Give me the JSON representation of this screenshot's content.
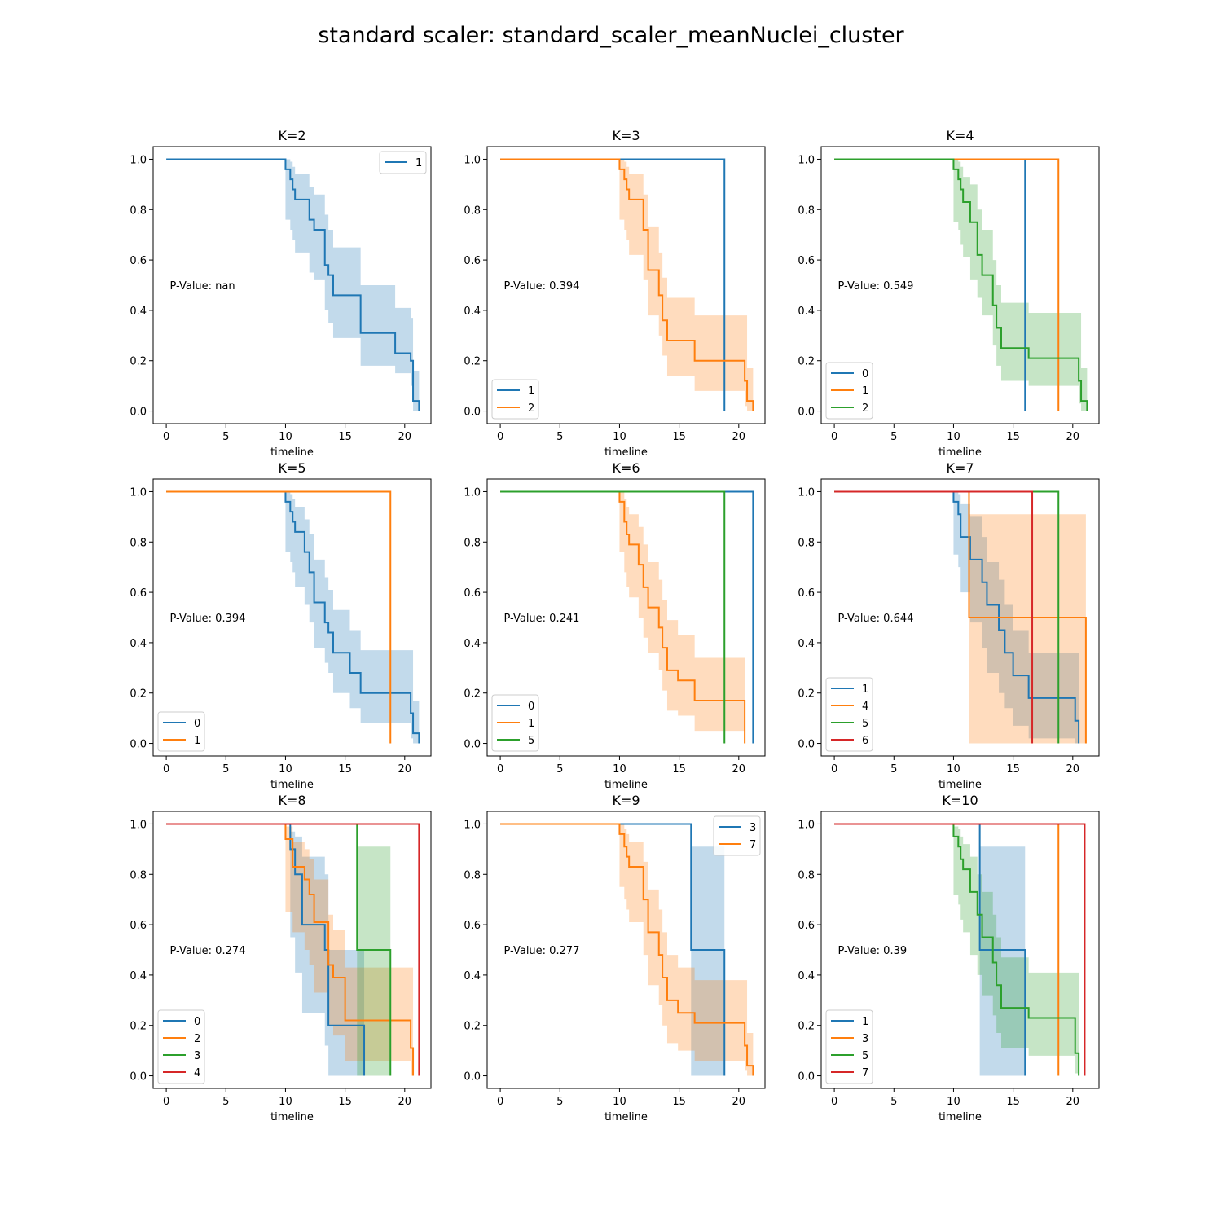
{
  "suptitle": "standard scaler: standard_scaler_meanNuclei_cluster",
  "colors": {
    "C0": "#1f77b4",
    "C1": "#ff7f0e",
    "C2": "#2ca02c",
    "C3": "#d62728"
  },
  "chart_data": [
    {
      "type": "line",
      "title": "K=2",
      "xlabel": "timeline",
      "xlim": [
        -1.1,
        22.2
      ],
      "ylim": [
        -0.05,
        1.05
      ],
      "xticks": [
        0,
        5,
        10,
        15,
        20
      ],
      "yticks": [
        "0.0",
        "0.2",
        "0.4",
        "0.6",
        "0.8",
        "1.0"
      ],
      "annotation": "P-Value: nan",
      "legend": "top-right",
      "series": [
        {
          "name": "1",
          "color": "#1f77b4",
          "x": [
            0,
            10,
            10.4,
            10.6,
            10.8,
            12.0,
            12.4,
            13.3,
            13.6,
            14.0,
            16.3,
            19.2,
            20.5,
            20.7,
            21.2
          ],
          "y": [
            1.0,
            0.96,
            0.92,
            0.88,
            0.84,
            0.76,
            0.72,
            0.58,
            0.54,
            0.46,
            0.31,
            0.23,
            0.2,
            0.04,
            0.0
          ],
          "ci_lo": [
            1.0,
            0.76,
            0.72,
            0.68,
            0.63,
            0.55,
            0.52,
            0.4,
            0.35,
            0.29,
            0.18,
            0.15,
            0.1,
            0.0,
            0.0
          ],
          "ci_hi": [
            1.0,
            1.0,
            0.99,
            0.97,
            0.94,
            0.89,
            0.86,
            0.78,
            0.72,
            0.65,
            0.5,
            0.41,
            0.37,
            0.16,
            0.16
          ]
        }
      ]
    },
    {
      "type": "line",
      "title": "K=3",
      "xlabel": "timeline",
      "xlim": [
        -1.1,
        22.2
      ],
      "ylim": [
        -0.05,
        1.05
      ],
      "xticks": [
        0,
        5,
        10,
        15,
        20
      ],
      "yticks": [
        "0.0",
        "0.2",
        "0.4",
        "0.6",
        "0.8",
        "1.0"
      ],
      "annotation": "P-Value: 0.394",
      "legend": "lower-left",
      "series": [
        {
          "name": "1",
          "color": "#1f77b4",
          "x": [
            0,
            18.8
          ],
          "y": [
            1.0,
            0.0
          ]
        },
        {
          "name": "2",
          "color": "#ff7f0e",
          "x": [
            0,
            10,
            10.4,
            10.6,
            10.8,
            12.0,
            12.4,
            13.3,
            13.6,
            14.0,
            16.3,
            20.5,
            20.7,
            21.2
          ],
          "y": [
            1.0,
            0.96,
            0.92,
            0.88,
            0.84,
            0.72,
            0.56,
            0.46,
            0.36,
            0.28,
            0.2,
            0.12,
            0.04,
            0.0
          ],
          "ci_lo": [
            1.0,
            0.76,
            0.72,
            0.68,
            0.62,
            0.52,
            0.38,
            0.3,
            0.22,
            0.14,
            0.08,
            0.02,
            0.0,
            0.0
          ],
          "ci_hi": [
            1.0,
            1.0,
            0.99,
            0.97,
            0.94,
            0.86,
            0.73,
            0.63,
            0.53,
            0.45,
            0.38,
            0.38,
            0.17,
            0.17
          ]
        }
      ]
    },
    {
      "type": "line",
      "title": "K=4",
      "xlabel": "timeline",
      "xlim": [
        -1.1,
        22.2
      ],
      "ylim": [
        -0.05,
        1.05
      ],
      "xticks": [
        0,
        5,
        10,
        15,
        20
      ],
      "yticks": [
        "0.0",
        "0.2",
        "0.4",
        "0.6",
        "0.8",
        "1.0"
      ],
      "annotation": "P-Value: 0.549",
      "legend": "lower-left",
      "series": [
        {
          "name": "0",
          "color": "#1f77b4",
          "x": [
            0,
            16.0
          ],
          "y": [
            1.0,
            0.0
          ]
        },
        {
          "name": "1",
          "color": "#ff7f0e",
          "x": [
            0,
            18.8
          ],
          "y": [
            1.0,
            0.0
          ]
        },
        {
          "name": "2",
          "color": "#2ca02c",
          "x": [
            0,
            10,
            10.4,
            10.6,
            10.8,
            11.4,
            12.0,
            12.4,
            13.3,
            13.6,
            14.0,
            16.3,
            20.5,
            20.7,
            21.2
          ],
          "y": [
            1.0,
            0.96,
            0.92,
            0.88,
            0.83,
            0.75,
            0.62,
            0.54,
            0.42,
            0.33,
            0.25,
            0.21,
            0.12,
            0.04,
            0.0
          ],
          "ci_lo": [
            1.0,
            0.75,
            0.72,
            0.66,
            0.61,
            0.52,
            0.45,
            0.38,
            0.26,
            0.18,
            0.12,
            0.1,
            0.03,
            0.0,
            0.0
          ],
          "ci_hi": [
            1.0,
            1.0,
            0.99,
            0.97,
            0.93,
            0.9,
            0.8,
            0.72,
            0.6,
            0.5,
            0.43,
            0.39,
            0.39,
            0.17,
            0.17
          ]
        }
      ]
    },
    {
      "type": "line",
      "title": "K=5",
      "xlabel": "timeline",
      "xlim": [
        -1.1,
        22.2
      ],
      "ylim": [
        -0.05,
        1.05
      ],
      "xticks": [
        0,
        5,
        10,
        15,
        20
      ],
      "yticks": [
        "0.0",
        "0.2",
        "0.4",
        "0.6",
        "0.8",
        "1.0"
      ],
      "annotation": "P-Value: 0.394",
      "legend": "lower-left",
      "series": [
        {
          "name": "0",
          "color": "#1f77b4",
          "x": [
            0,
            10,
            10.4,
            10.6,
            10.8,
            11.6,
            12.0,
            12.4,
            13.3,
            13.6,
            14.0,
            15.4,
            16.3,
            20.5,
            20.7,
            21.2
          ],
          "y": [
            1.0,
            0.96,
            0.92,
            0.88,
            0.84,
            0.76,
            0.68,
            0.56,
            0.48,
            0.44,
            0.36,
            0.28,
            0.2,
            0.12,
            0.04,
            0.0
          ],
          "ci_lo": [
            1.0,
            0.76,
            0.72,
            0.68,
            0.62,
            0.55,
            0.48,
            0.38,
            0.32,
            0.28,
            0.2,
            0.14,
            0.08,
            0.02,
            0.0,
            0.0
          ],
          "ci_hi": [
            1.0,
            1.0,
            0.99,
            0.97,
            0.94,
            0.89,
            0.83,
            0.73,
            0.66,
            0.61,
            0.53,
            0.45,
            0.37,
            0.37,
            0.17,
            0.17
          ]
        },
        {
          "name": "1",
          "color": "#ff7f0e",
          "x": [
            0,
            18.8
          ],
          "y": [
            1.0,
            0.0
          ]
        }
      ]
    },
    {
      "type": "line",
      "title": "K=6",
      "xlabel": "timeline",
      "xlim": [
        -1.1,
        22.2
      ],
      "ylim": [
        -0.05,
        1.05
      ],
      "xticks": [
        0,
        5,
        10,
        15,
        20
      ],
      "yticks": [
        "0.0",
        "0.2",
        "0.4",
        "0.6",
        "0.8",
        "1.0"
      ],
      "annotation": "P-Value: 0.241",
      "legend": "lower-left",
      "series": [
        {
          "name": "0",
          "color": "#1f77b4",
          "x": [
            0,
            21.2
          ],
          "y": [
            1.0,
            0.0
          ]
        },
        {
          "name": "1",
          "color": "#ff7f0e",
          "x": [
            0,
            10,
            10.4,
            10.6,
            10.8,
            11.6,
            12.0,
            12.4,
            13.3,
            13.6,
            14.0,
            14.9,
            16.3,
            20.5
          ],
          "y": [
            1.0,
            0.96,
            0.88,
            0.83,
            0.79,
            0.71,
            0.62,
            0.54,
            0.46,
            0.38,
            0.29,
            0.25,
            0.17,
            0.0
          ],
          "ci_lo": [
            1.0,
            0.76,
            0.68,
            0.62,
            0.58,
            0.5,
            0.42,
            0.36,
            0.29,
            0.21,
            0.13,
            0.11,
            0.05,
            0.0
          ],
          "ci_hi": [
            1.0,
            1.0,
            0.97,
            0.94,
            0.91,
            0.86,
            0.79,
            0.72,
            0.65,
            0.57,
            0.49,
            0.43,
            0.34,
            0.34
          ]
        },
        {
          "name": "5",
          "color": "#2ca02c",
          "x": [
            0,
            18.8
          ],
          "y": [
            1.0,
            0.0
          ]
        }
      ]
    },
    {
      "type": "line",
      "title": "K=7",
      "xlabel": "timeline",
      "xlim": [
        -1.1,
        22.2
      ],
      "ylim": [
        -0.05,
        1.05
      ],
      "xticks": [
        0,
        5,
        10,
        15,
        20
      ],
      "yticks": [
        "0.0",
        "0.2",
        "0.4",
        "0.6",
        "0.8",
        "1.0"
      ],
      "annotation": "P-Value: 0.644",
      "legend": "lower-left",
      "series": [
        {
          "name": "1",
          "color": "#1f77b4",
          "x": [
            0,
            10,
            10.4,
            10.6,
            11.4,
            12.4,
            12.8,
            13.8,
            14.3,
            15.0,
            16.3,
            20.2,
            20.5
          ],
          "y": [
            1.0,
            0.96,
            0.91,
            0.82,
            0.73,
            0.64,
            0.55,
            0.45,
            0.36,
            0.27,
            0.18,
            0.09,
            0.0
          ],
          "ci_lo": [
            1.0,
            0.75,
            0.7,
            0.6,
            0.48,
            0.38,
            0.28,
            0.2,
            0.14,
            0.07,
            0.02,
            0.0,
            0.0
          ],
          "ci_hi": [
            1.0,
            1.0,
            0.99,
            0.95,
            0.9,
            0.82,
            0.72,
            0.65,
            0.55,
            0.45,
            0.36,
            0.36,
            0.36
          ]
        },
        {
          "name": "4",
          "color": "#ff7f0e",
          "x": [
            0,
            11.3,
            21.1
          ],
          "y": [
            1.0,
            0.5,
            0.0
          ],
          "ci_lo": [
            1.0,
            0.0,
            0.0
          ],
          "ci_hi": [
            1.0,
            0.91,
            0.91
          ]
        },
        {
          "name": "5",
          "color": "#2ca02c",
          "x": [
            0,
            18.8
          ],
          "y": [
            1.0,
            0.0
          ]
        },
        {
          "name": "6",
          "color": "#d62728",
          "x": [
            0,
            16.6
          ],
          "y": [
            1.0,
            0.0
          ]
        }
      ]
    },
    {
      "type": "line",
      "title": "K=8",
      "xlabel": "timeline",
      "xlim": [
        -1.1,
        22.2
      ],
      "ylim": [
        -0.05,
        1.05
      ],
      "xticks": [
        0,
        5,
        10,
        15,
        20
      ],
      "yticks": [
        "0.0",
        "0.2",
        "0.4",
        "0.6",
        "0.8",
        "1.0"
      ],
      "annotation": "P-Value: 0.274",
      "legend": "lower-left",
      "series": [
        {
          "name": "0",
          "color": "#1f77b4",
          "x": [
            0,
            10.4,
            10.8,
            11.4,
            13.3,
            13.6,
            16.6
          ],
          "y": [
            1.0,
            0.9,
            0.8,
            0.6,
            0.5,
            0.2,
            0.0
          ],
          "ci_lo": [
            1.0,
            0.55,
            0.41,
            0.25,
            0.12,
            0.0,
            0.0
          ],
          "ci_hi": [
            1.0,
            0.97,
            0.95,
            0.87,
            0.8,
            0.5,
            0.5
          ]
        },
        {
          "name": "2",
          "color": "#ff7f0e",
          "x": [
            0,
            10,
            10.6,
            11.6,
            12.0,
            12.4,
            13.6,
            14.0,
            15.0,
            20.5,
            20.7
          ],
          "y": [
            1.0,
            0.94,
            0.83,
            0.78,
            0.72,
            0.61,
            0.44,
            0.39,
            0.22,
            0.11,
            0.0
          ],
          "ci_lo": [
            1.0,
            0.65,
            0.57,
            0.5,
            0.44,
            0.33,
            0.2,
            0.16,
            0.06,
            0.0,
            0.0
          ],
          "ci_hi": [
            1.0,
            0.99,
            0.93,
            0.9,
            0.86,
            0.78,
            0.64,
            0.58,
            0.43,
            0.43,
            0.43
          ]
        },
        {
          "name": "3",
          "color": "#2ca02c",
          "x": [
            0,
            16.0,
            18.8
          ],
          "y": [
            1.0,
            0.5,
            0.0
          ],
          "ci_lo": [
            1.0,
            0.0,
            0.0
          ],
          "ci_hi": [
            1.0,
            0.91,
            0.91
          ]
        },
        {
          "name": "4",
          "color": "#d62728",
          "x": [
            0,
            21.2
          ],
          "y": [
            1.0,
            0.0
          ]
        }
      ]
    },
    {
      "type": "line",
      "title": "K=9",
      "xlabel": "timeline",
      "xlim": [
        -1.1,
        22.2
      ],
      "ylim": [
        -0.05,
        1.05
      ],
      "xticks": [
        0,
        5,
        10,
        15,
        20
      ],
      "yticks": [
        "0.0",
        "0.2",
        "0.4",
        "0.6",
        "0.8",
        "1.0"
      ],
      "annotation": "P-Value: 0.277",
      "legend": "top-right",
      "series": [
        {
          "name": "3",
          "color": "#1f77b4",
          "x": [
            0,
            16.0,
            18.8
          ],
          "y": [
            1.0,
            0.5,
            0.0
          ],
          "ci_lo": [
            1.0,
            0.0,
            0.0
          ],
          "ci_hi": [
            1.0,
            0.91,
            0.91
          ]
        },
        {
          "name": "7",
          "color": "#ff7f0e",
          "x": [
            0,
            10,
            10.4,
            10.6,
            10.8,
            12.0,
            12.4,
            13.3,
            13.6,
            14.0,
            14.9,
            16.3,
            20.5,
            20.7,
            21.2
          ],
          "y": [
            1.0,
            0.96,
            0.91,
            0.87,
            0.83,
            0.7,
            0.57,
            0.48,
            0.39,
            0.3,
            0.25,
            0.21,
            0.12,
            0.04,
            0.0
          ],
          "ci_lo": [
            1.0,
            0.75,
            0.7,
            0.66,
            0.61,
            0.48,
            0.36,
            0.28,
            0.2,
            0.13,
            0.1,
            0.06,
            0.02,
            0.0,
            0.0
          ],
          "ci_hi": [
            1.0,
            1.0,
            0.98,
            0.96,
            0.93,
            0.85,
            0.74,
            0.66,
            0.57,
            0.48,
            0.43,
            0.38,
            0.38,
            0.17,
            0.17
          ]
        }
      ]
    },
    {
      "type": "line",
      "title": "K=10",
      "xlabel": "timeline",
      "xlim": [
        -1.1,
        22.2
      ],
      "ylim": [
        -0.05,
        1.05
      ],
      "xticks": [
        0,
        5,
        10,
        15,
        20
      ],
      "yticks": [
        "0.0",
        "0.2",
        "0.4",
        "0.6",
        "0.8",
        "1.0"
      ],
      "annotation": "P-Value: 0.39",
      "legend": "lower-left",
      "series": [
        {
          "name": "1",
          "color": "#1f77b4",
          "x": [
            0,
            12.2,
            16.0
          ],
          "y": [
            1.0,
            0.5,
            0.0
          ],
          "ci_lo": [
            1.0,
            0.0,
            0.0
          ],
          "ci_hi": [
            1.0,
            0.91,
            0.91
          ]
        },
        {
          "name": "3",
          "color": "#ff7f0e",
          "x": [
            0,
            18.8
          ],
          "y": [
            1.0,
            0.0
          ]
        },
        {
          "name": "5",
          "color": "#2ca02c",
          "x": [
            0,
            10,
            10.4,
            10.6,
            10.8,
            11.4,
            12.0,
            12.4,
            13.3,
            13.6,
            14.0,
            16.3,
            20.2,
            20.5
          ],
          "y": [
            1.0,
            0.95,
            0.91,
            0.86,
            0.82,
            0.73,
            0.64,
            0.55,
            0.45,
            0.36,
            0.27,
            0.23,
            0.09,
            0.0
          ],
          "ci_lo": [
            1.0,
            0.72,
            0.68,
            0.62,
            0.57,
            0.48,
            0.4,
            0.32,
            0.24,
            0.17,
            0.11,
            0.08,
            0.01,
            0.0
          ],
          "ci_hi": [
            1.0,
            0.99,
            0.98,
            0.95,
            0.92,
            0.87,
            0.8,
            0.73,
            0.64,
            0.55,
            0.47,
            0.41,
            0.41,
            0.41
          ]
        },
        {
          "name": "7",
          "color": "#d62728",
          "x": [
            0,
            21.0
          ],
          "y": [
            1.0,
            0.0
          ]
        }
      ]
    }
  ]
}
